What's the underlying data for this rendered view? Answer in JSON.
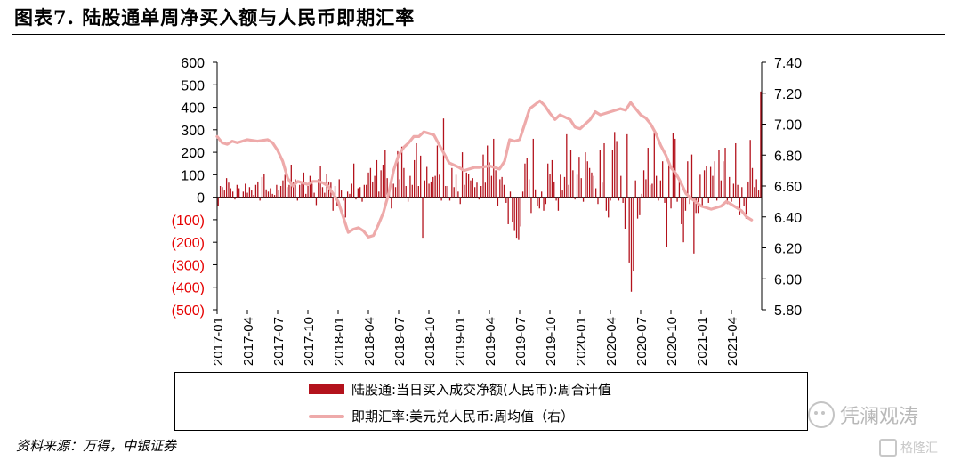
{
  "figure": {
    "title": "图表7. 陆股通单周净买入额与人民币即期汇率",
    "source": "资料来源：万得，中银证券",
    "watermark": "凭澜观涛",
    "watermark_small": "格隆汇"
  },
  "colors": {
    "bar": "#b3121c",
    "line": "#eeaaaa",
    "negative_tick": "#e60000",
    "axis": "#000000"
  },
  "chart_data": {
    "type": "bar+line",
    "title": "",
    "x_tick_labels": [
      "2017-01",
      "2017-04",
      "2017-07",
      "2017-10",
      "2018-01",
      "2018-04",
      "2018-07",
      "2018-10",
      "2019-01",
      "2019-04",
      "2019-07",
      "2019-10",
      "2020-01",
      "2020-04",
      "2020-07",
      "2020-10",
      "2021-01",
      "2021-04"
    ],
    "x_range_months": [
      "2017-01",
      "2021-06"
    ],
    "y_left": {
      "ylim": [
        -500,
        600
      ],
      "tick_labels": [
        "600",
        "500",
        "400",
        "300",
        "200",
        "100",
        "0",
        "(100)",
        "(200)",
        "(300)",
        "(400)",
        "(500)"
      ],
      "negative_in_red": true
    },
    "y_right": {
      "ylim": [
        5.8,
        7.4
      ],
      "tick_labels": [
        "7.40",
        "7.20",
        "7.00",
        "6.80",
        "6.60",
        "6.40",
        "6.20",
        "6.00",
        "5.80"
      ]
    },
    "series": [
      {
        "name": "陆股通:当日买入成交净额(人民币):周合计值",
        "type": "bar",
        "axis": "left",
        "note_values_weekly_approx": true,
        "values": [
          -40,
          50,
          45,
          30,
          85,
          65,
          40,
          25,
          -10,
          55,
          40,
          -5,
          25,
          60,
          20,
          45,
          30,
          10,
          55,
          70,
          -15,
          90,
          105,
          35,
          25,
          40,
          15,
          10,
          55,
          30,
          50,
          75,
          100,
          45,
          55,
          145,
          65,
          80,
          -15,
          55,
          70,
          110,
          15,
          50,
          95,
          60,
          20,
          -35,
          80,
          140,
          45,
          20,
          105,
          70,
          65,
          -60,
          50,
          -40,
          80,
          30,
          -15,
          -90,
          25,
          15,
          60,
          150,
          -10,
          40,
          45,
          -20,
          55,
          55,
          110,
          130,
          70,
          95,
          165,
          25,
          120,
          145,
          210,
          85,
          40,
          -50,
          60,
          45,
          205,
          80,
          225,
          130,
          50,
          -20,
          95,
          55,
          165,
          240,
          50,
          185,
          -180,
          75,
          135,
          60,
          70,
          90,
          95,
          230,
          100,
          -15,
          350,
          50,
          50,
          -15,
          130,
          45,
          100,
          25,
          -30,
          200,
          55,
          110,
          105,
          75,
          85,
          45,
          65,
          -10,
          50,
          190,
          65,
          230,
          155,
          95,
          260,
          120,
          -40,
          80,
          90,
          55,
          -25,
          -120,
          25,
          -110,
          -150,
          -180,
          -190,
          -130,
          25,
          150,
          175,
          80,
          -70,
          260,
          35,
          -40,
          -50,
          25,
          -60,
          -30,
          150,
          105,
          165,
          70,
          -15,
          -60,
          100,
          30,
          90,
          280,
          55,
          210,
          120,
          -10,
          100,
          180,
          85,
          -20,
          200,
          160,
          130,
          110,
          95,
          40,
          -30,
          210,
          65,
          240,
          -60,
          -90,
          -15,
          210,
          290,
          250,
          -15,
          95,
          -25,
          -140,
          280,
          -290,
          -420,
          -330,
          75,
          -95,
          -80,
          15,
          120,
          80,
          220,
          55,
          60,
          300,
          95,
          -15,
          75,
          160,
          -25,
          -220,
          150,
          -50,
          285,
          260,
          -20,
          80,
          -120,
          -200,
          -60,
          160,
          -30,
          190,
          -250,
          -70,
          -70,
          100,
          -40,
          120,
          140,
          -25,
          135,
          95,
          160,
          -15,
          210,
          75,
          160,
          220,
          -30,
          90,
          -20,
          60,
          240,
          55,
          -80,
          45,
          -40,
          -95,
          70,
          255,
          130,
          45,
          80,
          30,
          470
        ]
      },
      {
        "name": "即期汇率:美元兑人民币:周均值（右）",
        "type": "line",
        "axis": "right",
        "x_months": [
          0,
          0.5,
          1,
          1.5,
          2,
          3,
          4,
          5,
          5.5,
          6,
          6.5,
          7,
          7.5,
          8,
          8.5,
          9,
          9.5,
          10,
          10.5,
          11,
          11.5,
          12,
          12.5,
          13,
          13.5,
          14,
          14.5,
          15,
          15.5,
          16,
          16.5,
          17,
          17.5,
          18,
          18.5,
          19,
          19.5,
          20,
          20.5,
          21,
          21.5,
          22,
          23,
          24,
          24.5,
          25,
          25.5,
          26,
          27,
          28,
          28.5,
          29,
          29.5,
          30,
          30.5,
          31,
          32,
          32.5,
          33,
          33.5,
          34,
          35,
          35.5,
          36,
          37,
          37.5,
          38,
          39,
          40,
          40.5,
          41,
          41.5,
          42,
          42.5,
          43,
          43.5,
          44,
          44.5,
          45,
          45.5,
          46,
          46.5,
          47,
          48,
          49,
          50,
          50.5,
          51,
          51.5,
          52,
          52.5,
          53
        ],
        "values": [
          6.92,
          6.88,
          6.87,
          6.89,
          6.88,
          6.9,
          6.89,
          6.9,
          6.88,
          6.83,
          6.76,
          6.65,
          6.6,
          6.63,
          6.62,
          6.61,
          6.63,
          6.63,
          6.62,
          6.6,
          6.55,
          6.5,
          6.4,
          6.3,
          6.32,
          6.33,
          6.31,
          6.27,
          6.28,
          6.35,
          6.43,
          6.55,
          6.7,
          6.8,
          6.85,
          6.88,
          6.92,
          6.92,
          6.95,
          6.94,
          6.93,
          6.87,
          6.75,
          6.72,
          6.7,
          6.71,
          6.72,
          6.72,
          6.73,
          6.71,
          6.76,
          6.9,
          6.89,
          6.9,
          7.0,
          7.1,
          7.15,
          7.12,
          7.07,
          7.03,
          7.06,
          7.03,
          6.98,
          6.97,
          7.03,
          7.08,
          7.06,
          7.08,
          7.1,
          7.09,
          7.14,
          7.1,
          7.06,
          7.04,
          7.0,
          6.94,
          6.86,
          6.8,
          6.72,
          6.68,
          6.62,
          6.55,
          6.52,
          6.47,
          6.45,
          6.47,
          6.5,
          6.48,
          6.46,
          6.44,
          6.4,
          6.38
        ]
      }
    ],
    "legend_position": "bottom",
    "grid": false
  }
}
